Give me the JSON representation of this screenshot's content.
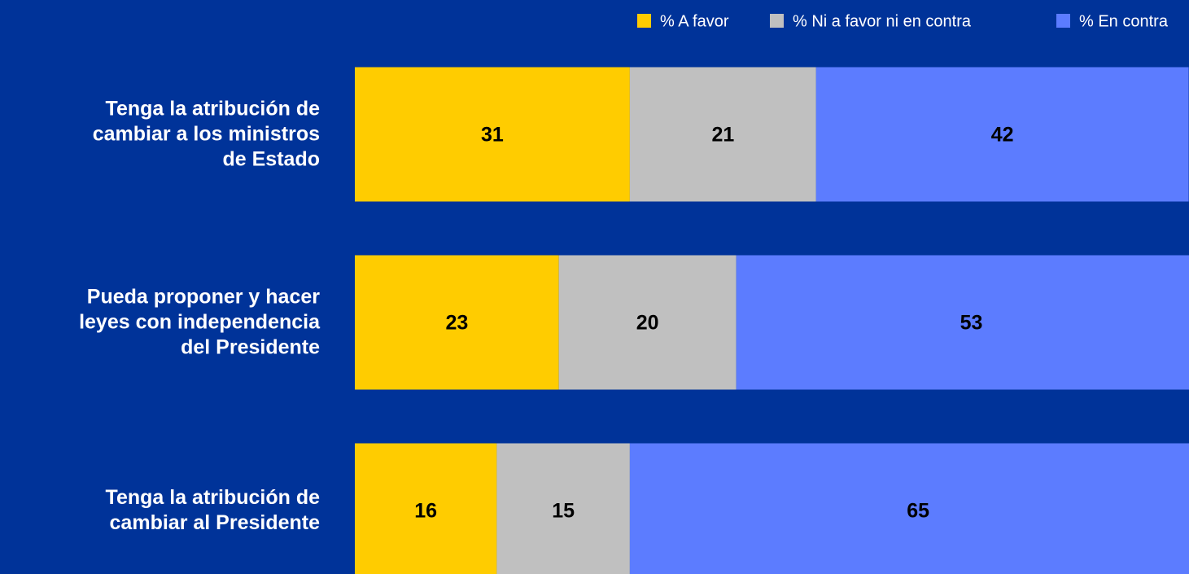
{
  "chart_data": {
    "type": "stacked_bar_horizontal",
    "categories": [
      "Tenga la atribución de\ncambiar a los ministros\nde Estado ",
      "Pueda proponer y hacer \nleyes con independencia\ndel Presidente",
      "Tenga la atribución de\ncambiar al Presidente"
    ],
    "series": [
      {
        "name": "% A favor",
        "color": "#ffcc00",
        "values": [
          31,
          23,
          16
        ]
      },
      {
        "name": "% Ni a favor ni en contra",
        "color": "#c0c0c0",
        "values": [
          21,
          20,
          15
        ]
      },
      {
        "name": "% En contra",
        "color": "#5c7cff",
        "values": [
          42,
          53,
          65
        ]
      }
    ],
    "legend": "top-right"
  }
}
